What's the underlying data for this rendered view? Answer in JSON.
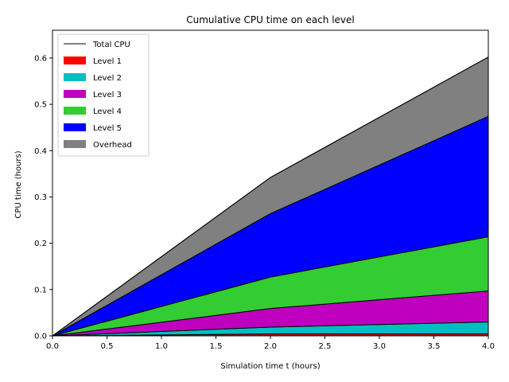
{
  "chart_data": {
    "type": "area",
    "title": "Cumulative CPU time on each level",
    "xlabel": "Simulation time t (hours)",
    "ylabel": "CPU time (hours)",
    "xlim": [
      0,
      4
    ],
    "ylim": [
      0,
      0.66
    ],
    "xticks": [
      "0.0",
      "0.5",
      "1.0",
      "1.5",
      "2.0",
      "2.5",
      "3.0",
      "3.5",
      "4.0"
    ],
    "yticks": [
      "0.0",
      "0.1",
      "0.2",
      "0.3",
      "0.4",
      "0.5",
      "0.6"
    ],
    "x": [
      0,
      2,
      4
    ],
    "stacked": true,
    "legend_position": "top-left",
    "total_line": {
      "name": "Total CPU",
      "color": "#000000",
      "values": [
        0,
        0.342,
        0.602
      ]
    },
    "series": [
      {
        "name": "Level 1",
        "color": "#ff0000",
        "values": [
          0,
          0.004,
          0.004
        ]
      },
      {
        "name": "Level 2",
        "color": "#00bfbf",
        "values": [
          0,
          0.015,
          0.026
        ]
      },
      {
        "name": "Level 3",
        "color": "#bf00bf",
        "values": [
          0,
          0.04,
          0.067
        ]
      },
      {
        "name": "Level 4",
        "color": "#33cc33",
        "values": [
          0,
          0.068,
          0.117
        ]
      },
      {
        "name": "Level 5",
        "color": "#0000ff",
        "values": [
          0,
          0.137,
          0.26
        ]
      },
      {
        "name": "Overhead",
        "color": "#808080",
        "values": [
          0,
          0.078,
          0.128
        ]
      }
    ]
  }
}
